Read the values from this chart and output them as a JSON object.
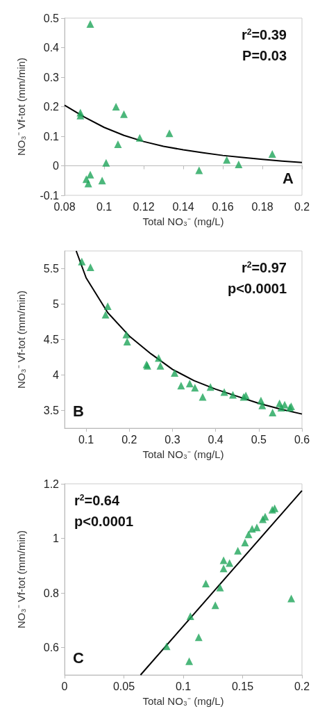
{
  "chart_data": [
    {
      "type": "scatter",
      "xlabel": "Total NO₃⁻ (mg/L)",
      "ylabel": "NO₃⁻ Vf-tot (mm/min)",
      "xlim": [
        0.08,
        0.2
      ],
      "ylim": [
        -0.1,
        0.5
      ],
      "xticks": [
        0.08,
        0.1,
        0.12,
        0.14,
        0.16,
        0.18,
        0.2
      ],
      "yticks": [
        -0.1,
        0,
        0.1,
        0.2,
        0.3,
        0.4,
        0.5
      ],
      "marker": "triangle",
      "annotations": [
        "r$^{2}$=0.39",
        "P=0.03",
        "A"
      ],
      "series": [
        {
          "color": "#1fa55a",
          "x": [
            0.093,
            0.088,
            0.088,
            0.106,
            0.11,
            0.107,
            0.118,
            0.133,
            0.101,
            0.093,
            0.091,
            0.092,
            0.099,
            0.148,
            0.162,
            0.168,
            0.185
          ],
          "values": [
            0.48,
            0.18,
            0.17,
            0.2,
            0.175,
            0.073,
            0.095,
            0.11,
            0.01,
            -0.03,
            -0.045,
            -0.06,
            -0.05,
            -0.015,
            0.02,
            0.005,
            0.04
          ]
        },
        {
          "type": "line",
          "marker": "none",
          "color": "#000000",
          "x": [
            0.08,
            0.09,
            0.1,
            0.11,
            0.12,
            0.13,
            0.14,
            0.15,
            0.16,
            0.17,
            0.18,
            0.19,
            0.2
          ],
          "values": [
            0.205,
            0.165,
            0.13,
            0.103,
            0.082,
            0.066,
            0.054,
            0.044,
            0.035,
            0.028,
            0.022,
            0.016,
            0.011
          ]
        }
      ]
    },
    {
      "type": "scatter",
      "xlabel": "Total NO₃⁻ (mg/L)",
      "ylabel": "NO₃⁻ Vf-tot (mm/min)",
      "xlim": [
        0.05,
        0.6
      ],
      "ylim": [
        3.25,
        5.75
      ],
      "xticks": [
        0.1,
        0.2,
        0.3,
        0.4,
        0.5,
        0.6
      ],
      "yticks": [
        3.5,
        4,
        4.5,
        5,
        5.5
      ],
      "marker": "triangle",
      "annotations": [
        "r$^{2}$=0.97",
        "p<0.0001",
        "B"
      ],
      "series": [
        {
          "color": "#1fa55a",
          "x": [
            0.09,
            0.11,
            0.145,
            0.15,
            0.193,
            0.195,
            0.24,
            0.242,
            0.268,
            0.272,
            0.305,
            0.32,
            0.34,
            0.352,
            0.37,
            0.388,
            0.42,
            0.44,
            0.465,
            0.47,
            0.505,
            0.508,
            0.532,
            0.548,
            0.552,
            0.56,
            0.575,
            0.572
          ],
          "values": [
            5.6,
            5.52,
            4.85,
            4.97,
            4.57,
            4.47,
            4.15,
            4.13,
            4.24,
            4.13,
            4.03,
            3.85,
            3.88,
            3.82,
            3.69,
            3.83,
            3.76,
            3.72,
            3.69,
            3.71,
            3.64,
            3.57,
            3.47,
            3.6,
            3.54,
            3.58,
            3.56,
            3.54
          ]
        },
        {
          "type": "line",
          "marker": "none",
          "color": "#000000",
          "x": [
            0.077,
            0.1,
            0.15,
            0.2,
            0.25,
            0.3,
            0.35,
            0.4,
            0.45,
            0.5,
            0.55,
            0.6
          ],
          "values": [
            5.75,
            5.37,
            4.88,
            4.55,
            4.3,
            4.08,
            3.92,
            3.8,
            3.7,
            3.6,
            3.52,
            3.45
          ]
        }
      ]
    },
    {
      "type": "scatter",
      "xlabel": "Total NO₃⁻ (mg/L)",
      "ylabel": "NO₃⁻ Vf-tot (mm/min)",
      "xlim": [
        0,
        0.2
      ],
      "ylim": [
        0.5,
        1.2
      ],
      "xticks": [
        0,
        0.05,
        0.1,
        0.15,
        0.2
      ],
      "yticks": [
        0.6,
        0.8,
        1,
        1.2
      ],
      "marker": "triangle",
      "annotations": [
        "r$^{2}$=0.64",
        "p<0.0001",
        "C"
      ],
      "series": [
        {
          "color": "#1fa55a",
          "x": [
            0.086,
            0.105,
            0.106,
            0.113,
            0.119,
            0.127,
            0.131,
            0.134,
            0.134,
            0.139,
            0.146,
            0.152,
            0.155,
            0.158,
            0.162,
            0.167,
            0.169,
            0.175,
            0.177,
            0.191
          ],
          "values": [
            0.605,
            0.55,
            0.715,
            0.638,
            0.835,
            0.755,
            0.82,
            0.89,
            0.92,
            0.91,
            0.955,
            0.985,
            1.015,
            1.035,
            1.04,
            1.07,
            1.08,
            1.105,
            1.11,
            0.78
          ]
        },
        {
          "type": "line",
          "marker": "none",
          "color": "#000000",
          "x": [
            0.064,
            0.2
          ],
          "values": [
            0.5,
            1.175
          ]
        }
      ]
    }
  ]
}
